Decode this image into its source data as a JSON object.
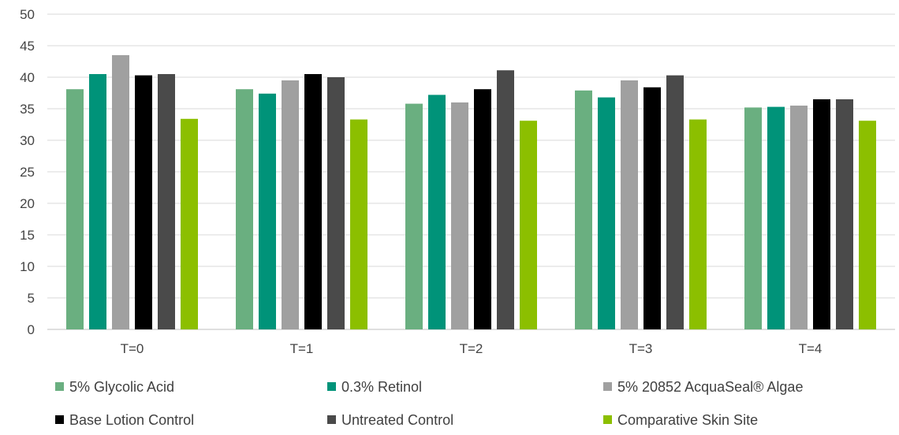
{
  "chart_data": {
    "type": "bar",
    "title": "",
    "xlabel": "",
    "ylabel": "",
    "ylim": [
      0,
      50
    ],
    "yticks": [
      0,
      5,
      10,
      15,
      20,
      25,
      30,
      35,
      40,
      45,
      50
    ],
    "grid": true,
    "legend_position": "bottom",
    "categories": [
      "T=0",
      "T=1",
      "T=2",
      "T=3",
      "T=4"
    ],
    "series": [
      {
        "name": "5% Glycolic Acid",
        "color": "#6aaf80",
        "values": [
          38.1,
          38.1,
          35.8,
          37.9,
          35.2
        ]
      },
      {
        "name": "0.3% Retinol",
        "color": "#009379",
        "values": [
          40.5,
          37.4,
          37.2,
          36.8,
          35.3
        ]
      },
      {
        "name": "5% 20852 AcquaSeal® Algae",
        "color": "#a0a0a0",
        "values": [
          43.5,
          39.5,
          36.0,
          39.5,
          35.5
        ]
      },
      {
        "name": "Base Lotion Control",
        "color": "#000000",
        "values": [
          40.3,
          40.5,
          38.1,
          38.4,
          36.5
        ]
      },
      {
        "name": "Untreated Control",
        "color": "#4a4a4a",
        "values": [
          40.5,
          40.0,
          41.1,
          40.3,
          36.5
        ]
      },
      {
        "name": "Comparative Skin Site",
        "color": "#8cbf00",
        "values": [
          33.4,
          33.3,
          33.1,
          33.3,
          33.1
        ]
      }
    ]
  }
}
